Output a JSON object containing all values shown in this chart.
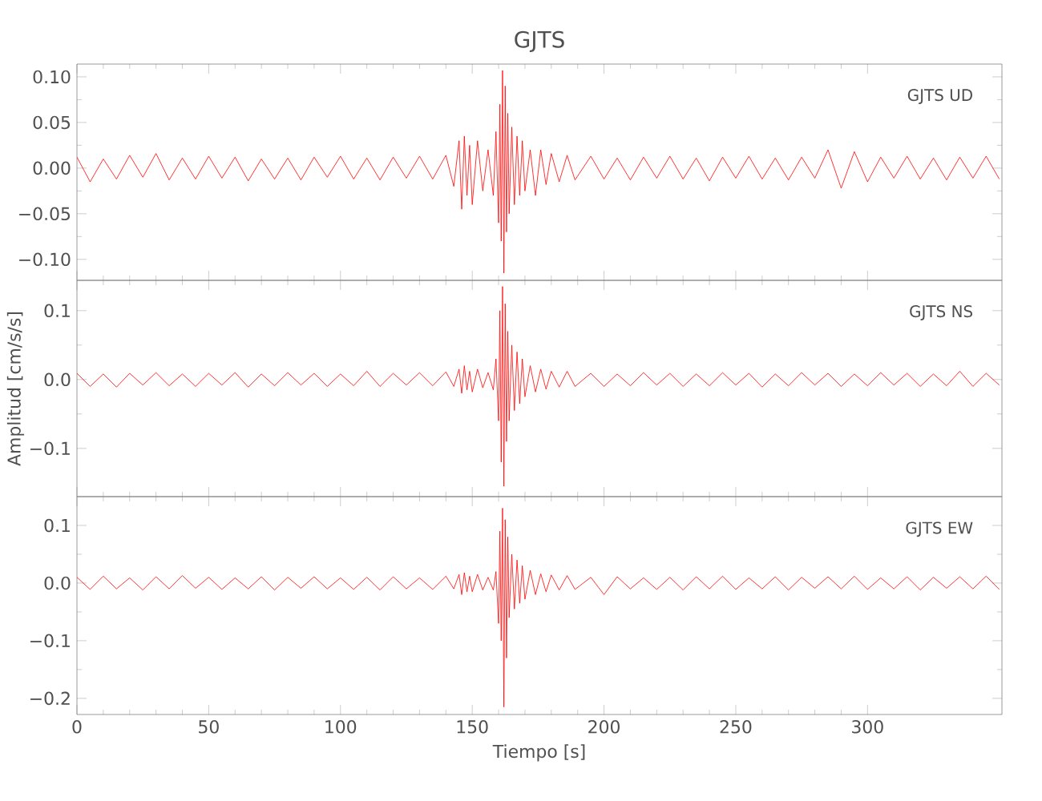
{
  "chart_data": [
    {
      "type": "line",
      "title": "GJTS",
      "annotations": [
        "GJTS   UD"
      ],
      "tick_labels": "y",
      "xlim": [
        0,
        351
      ],
      "xticks": [
        0,
        50,
        100,
        150,
        200,
        250,
        300
      ],
      "ylim": [
        -0.123,
        0.114
      ],
      "yticks": [
        {
          "value": -0.1,
          "label": "−0.10"
        },
        {
          "value": -0.05,
          "label": "−0.05"
        },
        {
          "value": 0,
          "label": "0.00"
        },
        {
          "value": 0.05,
          "label": "0.05"
        },
        {
          "value": 0.1,
          "label": "0.10"
        }
      ],
      "x": [
        0,
        5,
        10,
        15,
        20,
        25,
        30,
        35,
        40,
        45,
        50,
        55,
        60,
        65,
        70,
        75,
        80,
        85,
        90,
        95,
        100,
        105,
        110,
        115,
        120,
        125,
        130,
        135,
        140,
        143,
        145,
        146,
        147,
        148,
        149,
        150,
        152,
        154,
        156,
        158,
        159,
        160,
        160.5,
        161,
        161.5,
        162,
        162.5,
        163,
        163.5,
        164,
        165,
        166,
        167,
        168,
        169,
        170,
        172,
        174,
        176,
        178,
        180,
        183,
        186,
        189,
        195,
        200,
        205,
        210,
        215,
        220,
        225,
        230,
        235,
        240,
        245,
        250,
        255,
        260,
        265,
        270,
        275,
        280,
        285,
        290,
        295,
        300,
        305,
        310,
        315,
        320,
        325,
        330,
        335,
        340,
        345,
        350
      ],
      "series": [
        {
          "color": "#ff0000",
          "values": [
            0.012,
            -0.015,
            0.01,
            -0.012,
            0.014,
            -0.01,
            0.016,
            -0.013,
            0.011,
            -0.012,
            0.013,
            -0.011,
            0.012,
            -0.014,
            0.01,
            -0.012,
            0.011,
            -0.013,
            0.012,
            -0.01,
            0.013,
            -0.012,
            0.011,
            -0.013,
            0.012,
            -0.011,
            0.013,
            -0.012,
            0.014,
            -0.02,
            0.03,
            -0.045,
            0.035,
            -0.03,
            0.025,
            -0.04,
            0.03,
            -0.025,
            0.02,
            -0.03,
            0.04,
            -0.06,
            0.07,
            -0.08,
            0.107,
            -0.115,
            0.09,
            -0.07,
            0.06,
            -0.05,
            0.045,
            -0.04,
            0.035,
            -0.03,
            0.03,
            -0.025,
            0.02,
            -0.03,
            0.02,
            -0.018,
            0.016,
            -0.015,
            0.014,
            -0.013,
            0.013,
            -0.012,
            0.011,
            -0.013,
            0.012,
            -0.011,
            0.013,
            -0.012,
            0.011,
            -0.014,
            0.012,
            -0.011,
            0.013,
            -0.012,
            0.011,
            -0.013,
            0.012,
            -0.011,
            0.02,
            -0.022,
            0.018,
            -0.015,
            0.012,
            -0.011,
            0.013,
            -0.012,
            0.011,
            -0.013,
            0.012,
            -0.011,
            0.013,
            -0.012
          ]
        }
      ]
    },
    {
      "type": "line",
      "ylabel": "Amplitud [cm/s/s]",
      "annotations": [
        "GJTS   NS"
      ],
      "tick_labels": "y",
      "xlim": [
        0,
        351
      ],
      "xticks": [
        0,
        50,
        100,
        150,
        200,
        250,
        300
      ],
      "ylim": [
        -0.17,
        0.144
      ],
      "yticks": [
        {
          "value": -0.1,
          "label": "−0.1"
        },
        {
          "value": 0,
          "label": "0.0"
        },
        0.1
      ],
      "x": [
        0,
        5,
        10,
        15,
        20,
        25,
        30,
        35,
        40,
        45,
        50,
        55,
        60,
        65,
        70,
        75,
        80,
        85,
        90,
        95,
        100,
        105,
        110,
        115,
        120,
        125,
        130,
        135,
        140,
        143,
        145,
        146,
        147,
        148,
        149,
        150,
        152,
        154,
        156,
        158,
        159,
        160,
        160.5,
        161,
        161.5,
        162,
        162.5,
        163,
        163.5,
        164,
        165,
        166,
        167,
        168,
        169,
        170,
        172,
        174,
        176,
        178,
        180,
        183,
        186,
        189,
        195,
        200,
        205,
        210,
        215,
        220,
        225,
        230,
        235,
        240,
        245,
        250,
        255,
        260,
        265,
        270,
        275,
        280,
        285,
        290,
        295,
        300,
        305,
        310,
        315,
        320,
        325,
        330,
        335,
        340,
        345,
        350
      ],
      "series": [
        {
          "color": "#ff0000",
          "values": [
            0.009,
            -0.01,
            0.008,
            -0.011,
            0.009,
            -0.008,
            0.01,
            -0.009,
            0.008,
            -0.01,
            0.009,
            -0.008,
            0.01,
            -0.011,
            0.008,
            -0.009,
            0.01,
            -0.008,
            0.009,
            -0.01,
            0.008,
            -0.009,
            0.012,
            -0.01,
            0.009,
            -0.008,
            0.01,
            -0.009,
            0.011,
            -0.01,
            0.015,
            -0.02,
            0.02,
            -0.015,
            0.012,
            -0.018,
            0.015,
            -0.012,
            0.01,
            -0.015,
            0.03,
            -0.06,
            0.1,
            -0.12,
            0.135,
            -0.155,
            0.11,
            -0.09,
            0.07,
            -0.06,
            0.05,
            -0.045,
            0.04,
            -0.035,
            0.03,
            -0.025,
            0.02,
            -0.018,
            0.015,
            -0.014,
            0.012,
            -0.011,
            0.012,
            -0.01,
            0.009,
            -0.01,
            0.008,
            -0.009,
            0.01,
            -0.008,
            0.009,
            -0.01,
            0.008,
            -0.009,
            0.01,
            -0.008,
            0.009,
            -0.011,
            0.008,
            -0.009,
            0.01,
            -0.008,
            0.009,
            -0.01,
            0.008,
            -0.009,
            0.01,
            -0.008,
            0.009,
            -0.01,
            0.008,
            -0.009,
            0.012,
            -0.01,
            0.009,
            -0.008
          ]
        }
      ]
    },
    {
      "type": "line",
      "xlabel": "Tiempo [s]",
      "annotations": [
        "GJTS   EW"
      ],
      "xlim": [
        0,
        351
      ],
      "xticks": [
        0,
        50,
        100,
        150,
        200,
        250,
        300
      ],
      "ylim": [
        -0.228,
        0.15
      ],
      "yticks": [
        {
          "value": -0.2,
          "label": "−0.2"
        },
        {
          "value": -0.1,
          "label": "−0.1"
        },
        {
          "value": 0,
          "label": "0.0"
        },
        0.1
      ],
      "x": [
        0,
        5,
        10,
        15,
        20,
        25,
        30,
        35,
        40,
        45,
        50,
        55,
        60,
        65,
        70,
        75,
        80,
        85,
        90,
        95,
        100,
        105,
        110,
        115,
        120,
        125,
        130,
        135,
        140,
        143,
        145,
        146,
        147,
        148,
        149,
        150,
        152,
        154,
        156,
        158,
        159,
        160,
        160.5,
        161,
        161.5,
        162,
        162.5,
        163,
        163.5,
        164,
        165,
        166,
        167,
        168,
        169,
        170,
        172,
        174,
        176,
        178,
        180,
        183,
        186,
        189,
        195,
        200,
        205,
        210,
        215,
        220,
        225,
        230,
        235,
        240,
        245,
        250,
        255,
        260,
        265,
        270,
        275,
        280,
        285,
        290,
        295,
        300,
        305,
        310,
        315,
        320,
        325,
        330,
        335,
        340,
        345,
        350
      ],
      "series": [
        {
          "color": "#ff0000",
          "values": [
            0.01,
            -0.011,
            0.012,
            -0.01,
            0.009,
            -0.012,
            0.011,
            -0.01,
            0.013,
            -0.009,
            0.01,
            -0.011,
            0.009,
            -0.01,
            0.011,
            -0.012,
            0.01,
            -0.009,
            0.011,
            -0.01,
            0.009,
            -0.011,
            0.01,
            -0.012,
            0.011,
            -0.01,
            0.009,
            -0.011,
            0.012,
            -0.01,
            0.015,
            -0.02,
            0.018,
            -0.015,
            0.012,
            -0.015,
            0.015,
            -0.012,
            0.01,
            -0.012,
            0.02,
            -0.07,
            0.09,
            -0.1,
            0.13,
            -0.215,
            0.11,
            -0.13,
            0.08,
            -0.06,
            0.05,
            -0.045,
            0.04,
            -0.035,
            0.03,
            -0.028,
            0.022,
            -0.02,
            0.016,
            -0.015,
            0.014,
            -0.012,
            0.013,
            -0.011,
            0.01,
            -0.02,
            0.011,
            -0.01,
            0.009,
            -0.011,
            0.01,
            -0.012,
            0.011,
            -0.01,
            0.012,
            -0.011,
            0.009,
            -0.01,
            0.011,
            -0.012,
            0.01,
            -0.009,
            0.011,
            -0.01,
            0.012,
            -0.011,
            0.009,
            -0.01,
            0.011,
            -0.012,
            0.01,
            -0.009,
            0.011,
            -0.01,
            0.012,
            -0.011
          ]
        }
      ]
    }
  ]
}
